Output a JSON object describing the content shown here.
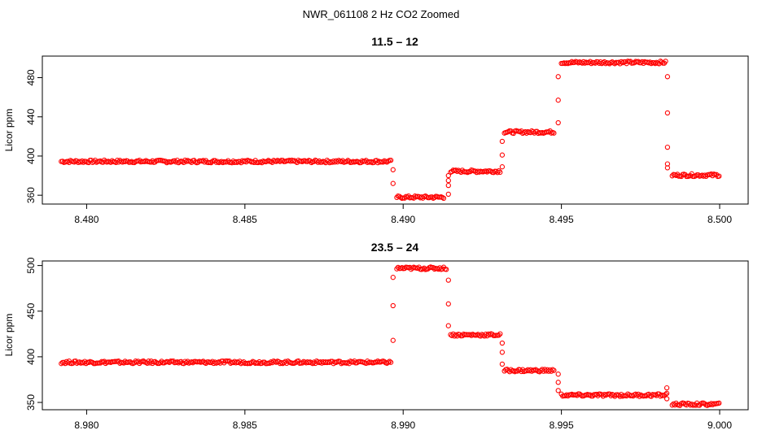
{
  "figure": {
    "title": "NWR_061108  2 Hz CO2 Zoomed"
  },
  "chart_data": [
    {
      "type": "scatter",
      "title": "11.5 – 12",
      "ylabel": "Licor ppm",
      "xlabel": "",
      "xlim": [
        8.4786,
        8.5009
      ],
      "ylim": [
        351,
        502
      ],
      "x_ticks": [
        8.48,
        8.485,
        8.49,
        8.495,
        8.5
      ],
      "x_tick_labels": [
        "8.480",
        "8.485",
        "8.490",
        "8.495",
        "8.500"
      ],
      "y_ticks": [
        360,
        400,
        440,
        480
      ],
      "y_tick_labels": [
        "360",
        "400",
        "440",
        "480"
      ],
      "marker": "open-circle",
      "color": "#ff0000",
      "series": [
        {
          "levels": [
            {
              "x0": 8.4792,
              "x1": 8.48965,
              "y": 394.5
            },
            {
              "x0": 8.4898,
              "x1": 8.4913,
              "y": 358
            },
            {
              "x0": 8.4915,
              "x1": 8.4931,
              "y": 384.5
            },
            {
              "x0": 8.4932,
              "x1": 8.4948,
              "y": 424.5
            },
            {
              "x0": 8.495,
              "x1": 8.4983,
              "y": 495.5
            },
            {
              "x0": 8.4985,
              "x1": 8.5,
              "y": 380.5
            }
          ],
          "transitions": [
            {
              "x": 8.48968,
              "y": [
                386,
                372
              ]
            },
            {
              "x": 8.49143,
              "y": [
                361,
                370,
                375,
                380
              ]
            },
            {
              "x": 8.49313,
              "y": [
                389,
                401,
                415
              ]
            },
            {
              "x": 8.4949,
              "y": [
                434,
                457,
                481
              ]
            },
            {
              "x": 8.49835,
              "y": [
                481,
                444,
                409,
                392,
                388
              ]
            }
          ]
        }
      ]
    },
    {
      "type": "scatter",
      "title": "23.5 – 24",
      "ylabel": "Licor ppm",
      "xlabel": "",
      "xlim": [
        8.9786,
        9.0009
      ],
      "ylim": [
        342,
        505
      ],
      "x_ticks": [
        8.98,
        8.985,
        8.99,
        8.995,
        9.0
      ],
      "x_tick_labels": [
        "8.980",
        "8.985",
        "8.990",
        "8.995",
        "9.000"
      ],
      "y_ticks": [
        350,
        400,
        450,
        500
      ],
      "y_tick_labels": [
        "350",
        "400",
        "450",
        "500"
      ],
      "marker": "open-circle",
      "color": "#ff0000",
      "series": [
        {
          "levels": [
            {
              "x0": 8.9792,
              "x1": 8.98965,
              "y": 394
            },
            {
              "x0": 8.9898,
              "x1": 8.9914,
              "y": 497
            },
            {
              "x0": 8.9915,
              "x1": 8.9931,
              "y": 424
            },
            {
              "x0": 8.9932,
              "x1": 8.9948,
              "y": 385
            },
            {
              "x0": 8.995,
              "x1": 8.9983,
              "y": 358
            },
            {
              "x0": 8.9985,
              "x1": 9.0,
              "y": 348
            }
          ],
          "transitions": [
            {
              "x": 8.98968,
              "y": [
                418,
                456,
                487
              ]
            },
            {
              "x": 8.99143,
              "y": [
                484,
                458,
                434
              ]
            },
            {
              "x": 8.99313,
              "y": [
                415,
                405,
                392
              ]
            },
            {
              "x": 8.9949,
              "y": [
                381,
                372,
                363
              ]
            },
            {
              "x": 8.99833,
              "y": [
                366,
                360,
                354
              ]
            }
          ]
        }
      ]
    }
  ]
}
